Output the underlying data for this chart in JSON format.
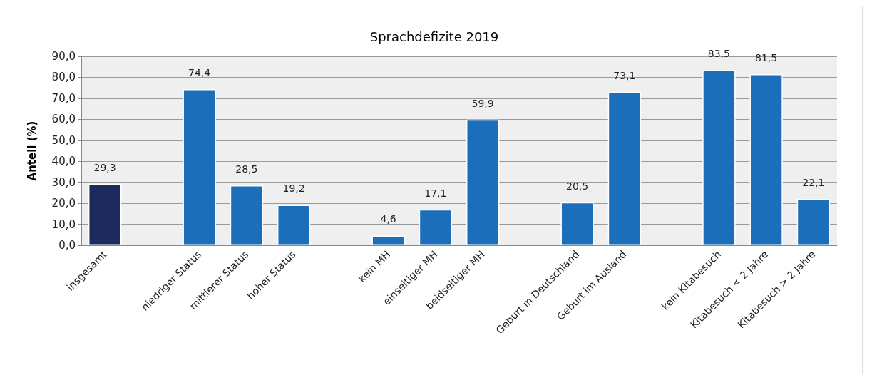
{
  "chart_data": {
    "type": "bar",
    "title": "Sprachdefizite 2019",
    "ylabel": "Anteil (%)",
    "categories": [
      "insgesamt",
      null,
      "niedriger Status",
      "mittlerer Status",
      "hoher Status",
      null,
      "kein MH",
      "einseitiger MH",
      "beidseitiger MH",
      null,
      "Geburt in Deutschland",
      "Geburt im Ausland",
      null,
      "kein Kitabesuch",
      "Kitabesuch < 2 Jahre",
      "Kitabesuch > 2 Jahre"
    ],
    "values": [
      29.3,
      null,
      74.4,
      28.5,
      19.2,
      null,
      4.6,
      17.1,
      59.9,
      null,
      20.5,
      73.1,
      null,
      83.5,
      81.5,
      22.1
    ],
    "value_labels": [
      "29,3",
      null,
      "74,4",
      "28,5",
      "19,2",
      null,
      "4,6",
      "17,1",
      "59,9",
      null,
      "20,5",
      "73,1",
      null,
      "83,5",
      "81,5",
      "22,1"
    ],
    "colors": [
      "#1f2a5c",
      null,
      "#1b6fba",
      "#1b6fba",
      "#1b6fba",
      null,
      "#1b6fba",
      "#1b6fba",
      "#1b6fba",
      null,
      "#1b6fba",
      "#1b6fba",
      null,
      "#1b6fba",
      "#1b6fba",
      "#1b6fba"
    ],
    "ylim": [
      0,
      90
    ],
    "yticks": [
      {
        "value": 0,
        "label": "0,0"
      },
      {
        "value": 10,
        "label": "10,0"
      },
      {
        "value": 20,
        "label": "20,0"
      },
      {
        "value": 30,
        "label": "30,0"
      },
      {
        "value": 40,
        "label": "40,0"
      },
      {
        "value": 50,
        "label": "50,0"
      },
      {
        "value": 60,
        "label": "60,0"
      },
      {
        "value": 70,
        "label": "70,0"
      },
      {
        "value": 80,
        "label": "80,0"
      },
      {
        "value": 90,
        "label": "90,0"
      }
    ],
    "grid": "y"
  }
}
